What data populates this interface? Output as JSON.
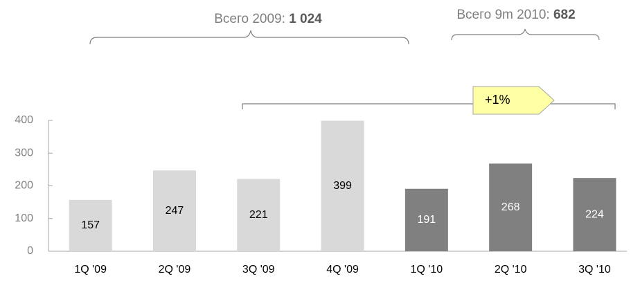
{
  "chart_data": {
    "type": "bar",
    "categories": [
      "1Q '09",
      "2Q '09",
      "3Q '09",
      "4Q '09",
      "1Q '10",
      "2Q '10",
      "3Q '10"
    ],
    "values": [
      157,
      247,
      221,
      399,
      191,
      268,
      224
    ],
    "colors": [
      "#d9d9d9",
      "#d9d9d9",
      "#d9d9d9",
      "#d9d9d9",
      "#808080",
      "#808080",
      "#808080"
    ],
    "ylim": [
      0,
      400
    ],
    "yticks": [
      0,
      100,
      200,
      300,
      400
    ],
    "totals": [
      {
        "label": "Всего 2009:",
        "value": "1 024"
      },
      {
        "label": "Всего 9m 2010:",
        "value": "682"
      }
    ],
    "change_label": "+1%"
  }
}
